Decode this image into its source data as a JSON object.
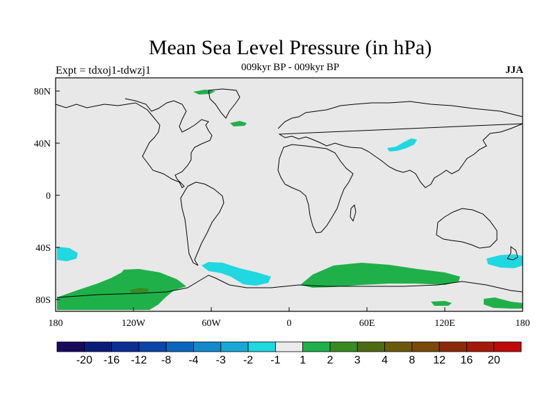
{
  "title": "Mean Sea Level Pressure (in hPa)",
  "subtitle": "009kyr BP - 009kyr BP",
  "experiment": "Expt = tdxoj1-tdwzj1",
  "season": "JJA",
  "axes": {
    "lat_ticks": [
      "80N",
      "40N",
      "0",
      "40S",
      "80S"
    ],
    "lon_ticks": [
      "180",
      "120W",
      "60W",
      "0",
      "60E",
      "120E",
      "180"
    ]
  },
  "colorbar": {
    "colors": [
      "#1a0a5c",
      "#0a1c78",
      "#0a2e94",
      "#0b45a8",
      "#0c66bd",
      "#1389cc",
      "#18a8d8",
      "#1fd8e0",
      "#ebebeb",
      "#20b04a",
      "#3a8a22",
      "#4e6a12",
      "#6a5a0a",
      "#7a4a0a",
      "#8a2a0a",
      "#a41a0a",
      "#c00a0a"
    ],
    "labels": [
      "-20",
      "-16",
      "-12",
      "-8",
      "-4",
      "-3",
      "-2",
      "-1",
      "1",
      "2",
      "3",
      "4",
      "8",
      "12",
      "16",
      "20"
    ]
  },
  "colors": {
    "ocean": "#e8e8e8",
    "positive": "#20b04a",
    "negative": "#1fd8e0"
  }
}
